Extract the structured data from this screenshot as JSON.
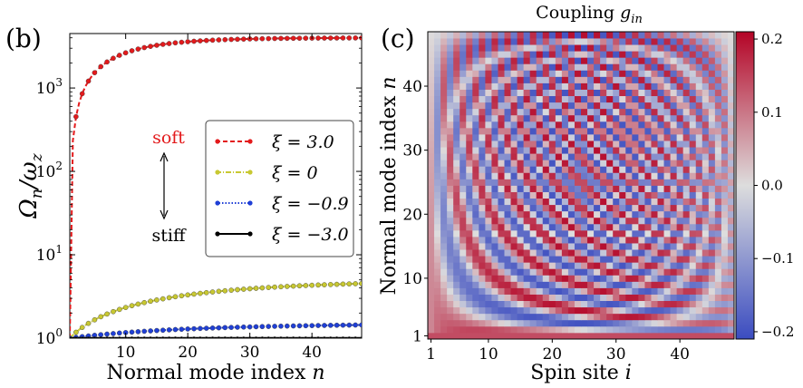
{
  "panels": {
    "b": {
      "label": "(b)"
    },
    "c": {
      "label": "(c)"
    }
  },
  "colors": {
    "soft_text": "#e31a1c",
    "xi_3": "#e31a1c",
    "xi_0": "#c8c832",
    "xi_m09": "#1f3fd6",
    "xi_m3": "#000000",
    "cmap_low": "#3b4cc0",
    "cmap_mid": "#dddddd",
    "cmap_high": "#b40426"
  },
  "chart_data": [
    {
      "type": "line",
      "panel": "(b)",
      "xlabel": "Normal mode index n",
      "ylabel": "Ω_n/ω_z",
      "yscale": "log",
      "xlim": [
        1,
        48
      ],
      "ylim": [
        1,
        4500
      ],
      "xticks": [
        10,
        20,
        30,
        40
      ],
      "yticks": [
        {
          "value": 1,
          "label": "10^0"
        },
        {
          "value": 10,
          "label": "10^1"
        },
        {
          "value": 100,
          "label": "10^2"
        },
        {
          "value": 1000,
          "label": "10^3"
        }
      ],
      "annotations": {
        "top": "soft",
        "bottom": "stiff"
      },
      "legend": {
        "position": "center-right"
      },
      "series": [
        {
          "name": "ξ = 3.0",
          "style": "dashed",
          "color_key": "xi_3",
          "model": {
            "start": 1.0,
            "end": 4000,
            "rate": 0.12
          }
        },
        {
          "name": "ξ = 0",
          "style": "dash-dot",
          "color_key": "xi_0",
          "model": {
            "start": 1.0,
            "end": 5.0,
            "rate": 0.045
          }
        },
        {
          "name": "ξ = −0.9",
          "style": "dotted",
          "color_key": "xi_m09",
          "model": {
            "start": 1.0,
            "end": 1.5,
            "rate": 0.045
          }
        },
        {
          "name": "ξ = −3.0",
          "style": "solid",
          "color_key": "xi_m3",
          "model": {
            "start": 1.0,
            "end": 1.0,
            "rate": 0.05
          }
        }
      ]
    },
    {
      "type": "heatmap",
      "panel": "(c)",
      "title": "Coupling g_in",
      "xlabel": "Spin site i",
      "ylabel": "Normal mode index n",
      "xlim": [
        1,
        48
      ],
      "ylim": [
        1,
        48
      ],
      "xticks": [
        1,
        10,
        20,
        30,
        40
      ],
      "yticks": [
        1,
        10,
        20,
        30,
        40
      ],
      "colorbar": {
        "range": [
          -0.21,
          0.21
        ],
        "ticks": [
          {
            "value": 0.2,
            "label": "0.2"
          },
          {
            "value": 0.1,
            "label": "0.1"
          },
          {
            "value": 0.0,
            "label": "0.0"
          },
          {
            "value": -0.1,
            "label": "−0.1"
          },
          {
            "value": -0.2,
            "label": "−0.2"
          }
        ]
      },
      "n_sites": 48
    }
  ],
  "text": {
    "b_xlabel_main": "Normal mode index ",
    "b_xlabel_var": "n",
    "b_ylabel_main": "Ω",
    "b_ylabel_sub1": "n",
    "b_ylabel_slash": "/ω",
    "b_ylabel_sub2": "z",
    "soft": "soft",
    "stiff": "stiff",
    "c_title_main": "Coupling ",
    "c_title_var": "g",
    "c_title_sub": "in",
    "c_xlabel_main": "Spin site ",
    "c_xlabel_var": "i",
    "c_ylabel_main": "Normal mode index ",
    "c_ylabel_var": "n"
  }
}
